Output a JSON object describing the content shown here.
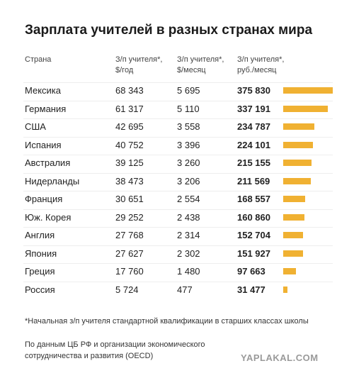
{
  "chart_data": {
    "type": "table-bar",
    "title": "Зарплата учителей в разных странах мира",
    "headers": [
      [
        "Страна"
      ],
      [
        "З/п учителя*,",
        "$/год"
      ],
      [
        "З/п учителя*,",
        "$/месяц"
      ],
      [
        "З/п учителя*,",
        "руб./месяц"
      ]
    ],
    "categories": [
      "Мексика",
      "Германия",
      "США",
      "Испания",
      "Австралия",
      "Нидерланды",
      "Франция",
      "Юж. Корея",
      "Англия",
      "Япония",
      "Греция",
      "Россия"
    ],
    "usd_year": [
      "68 343",
      "61 317",
      "42 695",
      "40 752",
      "39 125",
      "38 473",
      "30 651",
      "29 252",
      "27 768",
      "27 627",
      "17 760",
      "5 724"
    ],
    "usd_month": [
      "5 695",
      "5 110",
      "3 558",
      "3 396",
      "3 260",
      "3 206",
      "2 554",
      "2 438",
      "2 314",
      "2 302",
      "1 480",
      "477"
    ],
    "values": [
      375830,
      337191,
      234787,
      224101,
      215155,
      211569,
      168557,
      160860,
      152704,
      151927,
      97663,
      31477
    ],
    "value_labels": [
      "375 830",
      "337 191",
      "234 787",
      "224 101",
      "215 155",
      "211 569",
      "168 557",
      "160 860",
      "152 704",
      "151 927",
      "97 663",
      "31 477"
    ],
    "color": "#f0b132",
    "footnote": "*Начальная з/п учителя стандартной квалификации в старших классах школы",
    "source": [
      "По данным ЦБ РФ и организации экономического",
      "сотрудничества и развития (OECD)"
    ],
    "watermark": "YAPLAKAL.COM"
  }
}
